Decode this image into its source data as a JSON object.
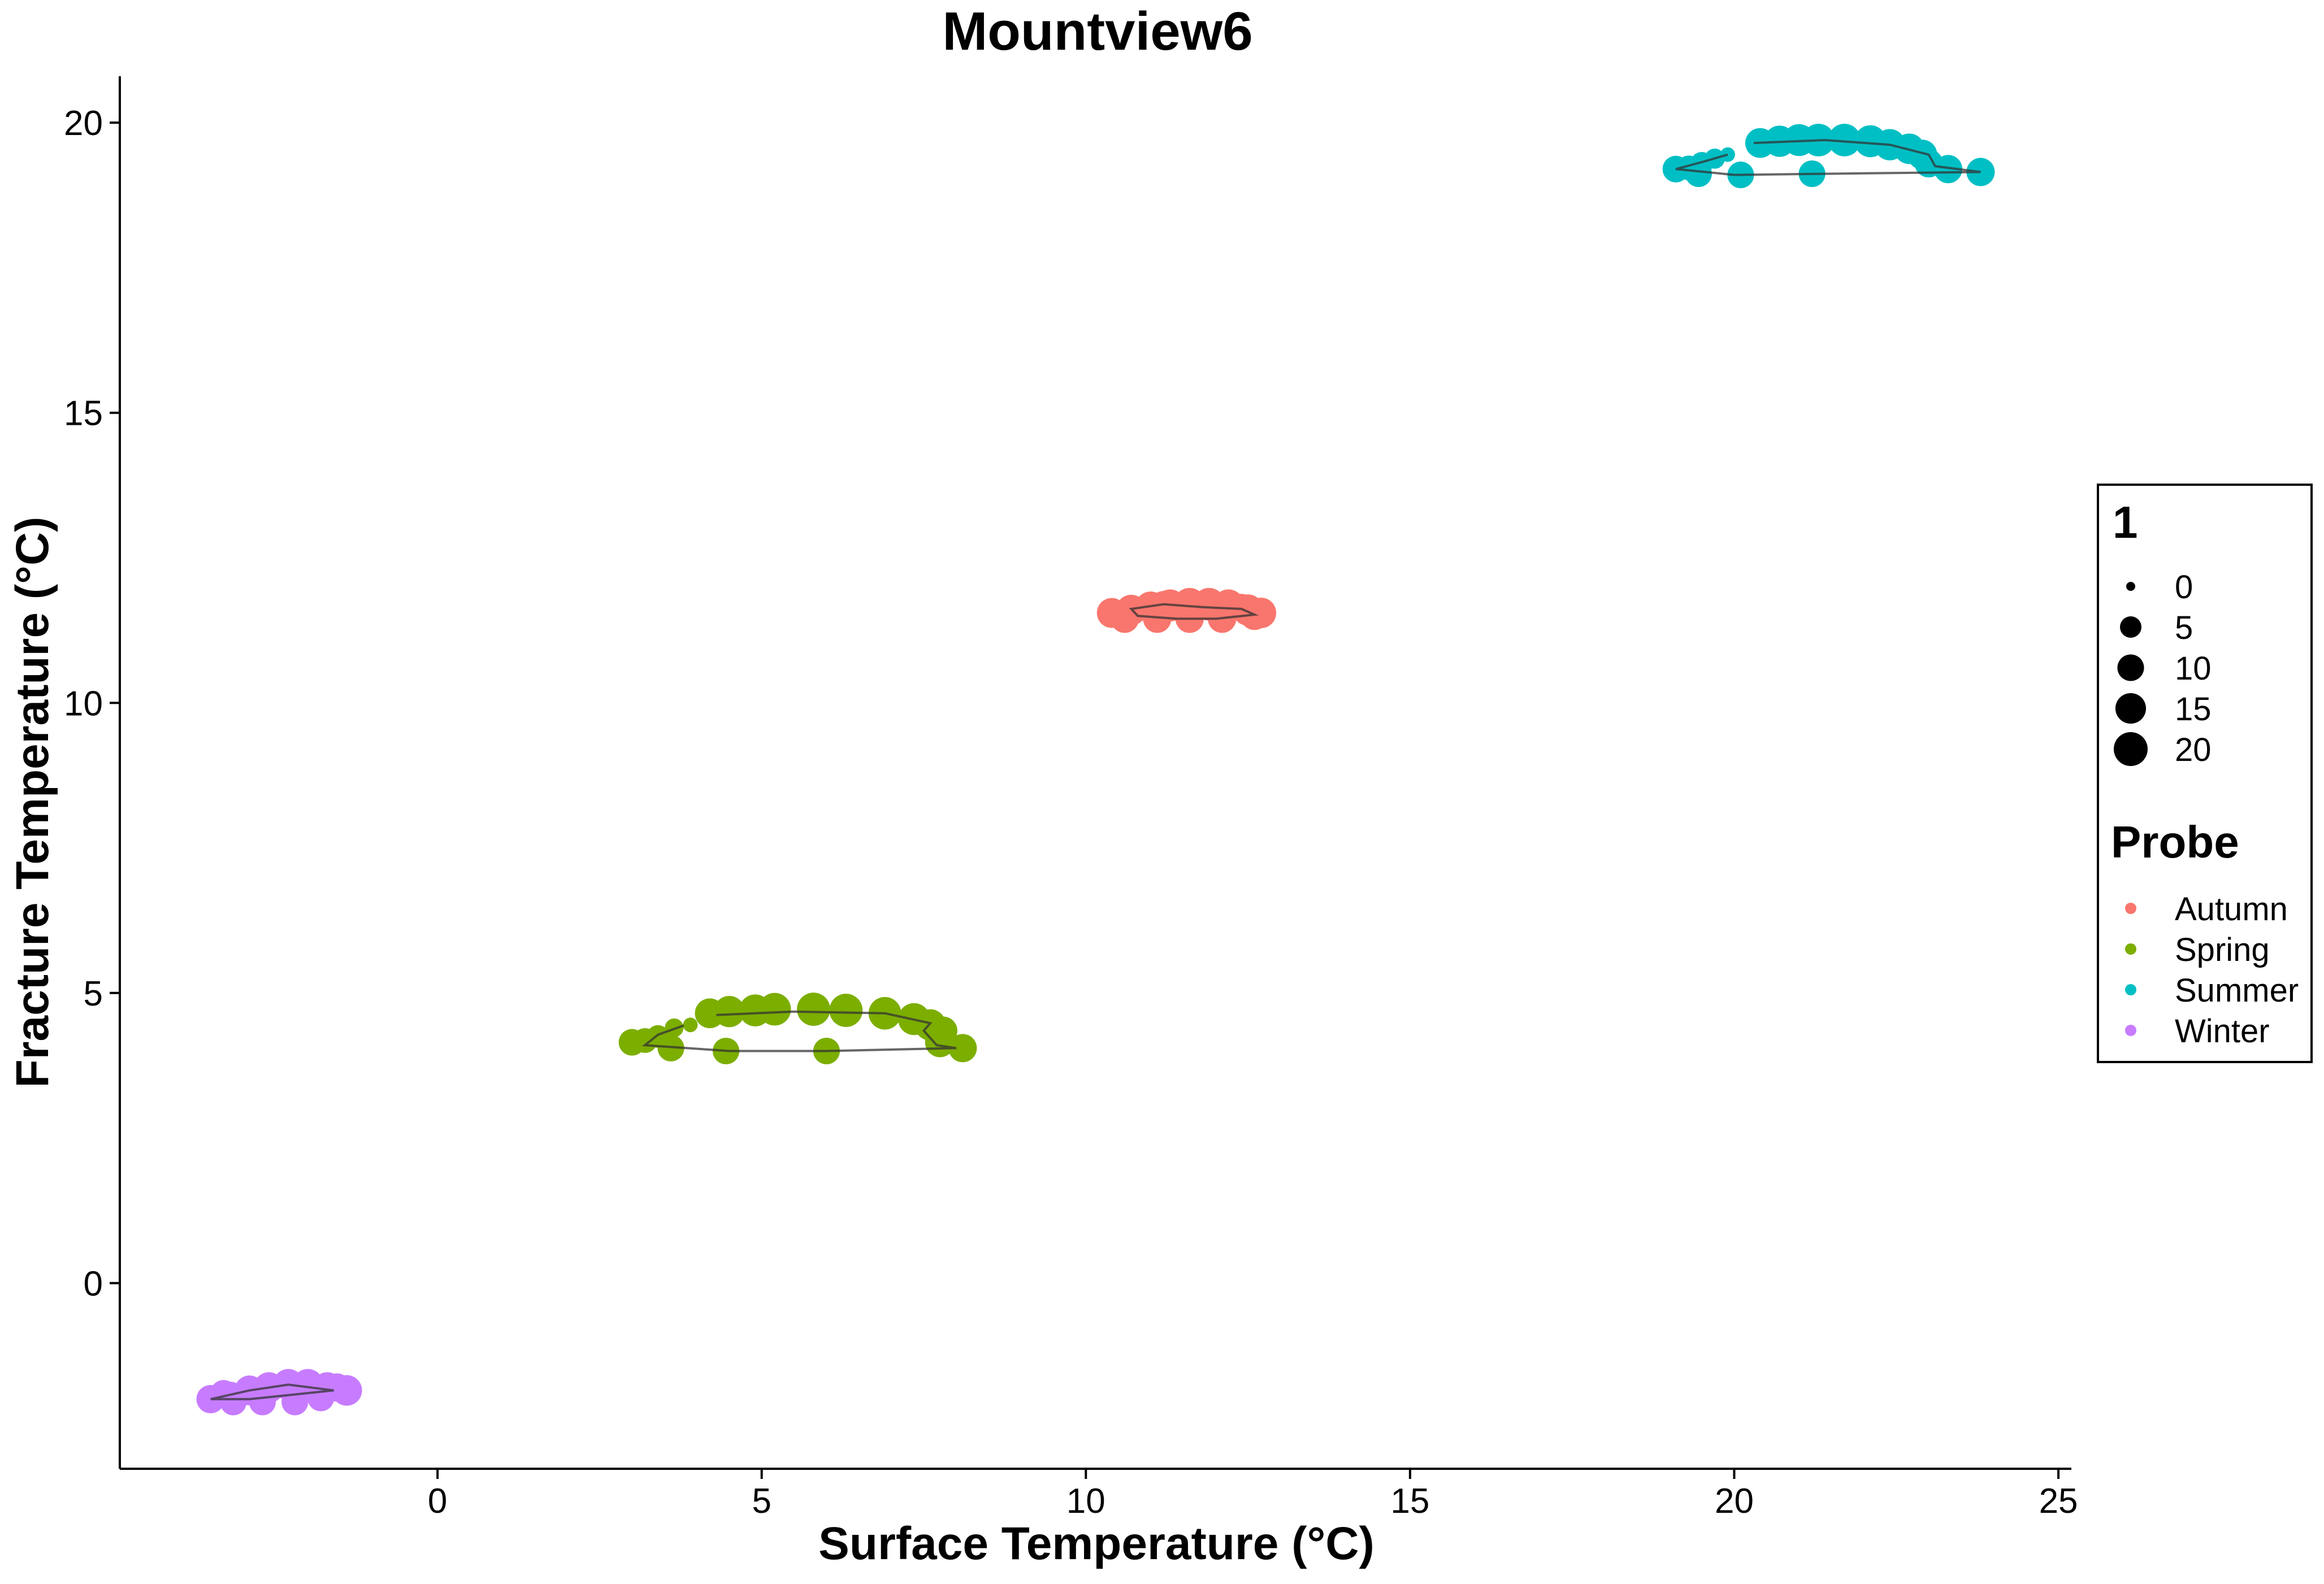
{
  "chart_data": {
    "type": "scatter",
    "title": "Mountview6",
    "xlabel": "Surface Temperature (°C)",
    "ylabel": "Fracture Temperature (°C)",
    "xlim": [
      -4.9,
      25.2
    ],
    "ylim": [
      -3.2,
      20.8
    ],
    "x_ticks": [
      0,
      5,
      10,
      15,
      20,
      25
    ],
    "x_tick_labels": [
      "0",
      "5",
      "10",
      "15",
      "20",
      "25"
    ],
    "y_ticks": [
      0,
      5,
      10,
      15,
      20
    ],
    "y_tick_labels": [
      "0",
      "5",
      "10",
      "15",
      "20"
    ],
    "grid": false,
    "legend_placement": "right",
    "size_legend": {
      "title": "1",
      "entries": [
        {
          "label": "0",
          "value": 0
        },
        {
          "label": "5",
          "value": 5
        },
        {
          "label": "10",
          "value": 10
        },
        {
          "label": "15",
          "value": 15
        },
        {
          "label": "20",
          "value": 20
        }
      ]
    },
    "color_legend": {
      "title": "Probe",
      "entries": [
        {
          "label": "Autumn",
          "color": "#F8766D"
        },
        {
          "label": "Spring",
          "color": "#7CAE00"
        },
        {
          "label": "Summer",
          "color": "#00BFC4"
        },
        {
          "label": "Winter",
          "color": "#C77CFF"
        }
      ]
    },
    "series": [
      {
        "name": "Autumn",
        "color": "#F8766D",
        "points": [
          [
            10.4,
            11.55,
            14
          ],
          [
            10.7,
            11.6,
            15
          ],
          [
            11.0,
            11.65,
            16
          ],
          [
            11.3,
            11.68,
            17
          ],
          [
            11.6,
            11.7,
            18
          ],
          [
            11.9,
            11.7,
            18
          ],
          [
            12.2,
            11.68,
            17
          ],
          [
            12.5,
            11.6,
            16
          ],
          [
            12.7,
            11.55,
            15
          ],
          [
            10.6,
            11.45,
            12
          ],
          [
            11.1,
            11.45,
            12
          ],
          [
            11.6,
            11.45,
            12
          ],
          [
            12.1,
            11.45,
            12
          ],
          [
            12.6,
            11.5,
            12
          ],
          [
            11.2,
            11.7,
            10
          ],
          [
            12.4,
            11.65,
            10
          ]
        ],
        "path": [
          [
            11.8,
            11.65
          ],
          [
            11.2,
            11.7
          ],
          [
            10.7,
            11.62
          ],
          [
            10.8,
            11.5
          ],
          [
            11.4,
            11.45
          ],
          [
            12.0,
            11.45
          ],
          [
            12.6,
            11.52
          ],
          [
            12.4,
            11.62
          ],
          [
            11.8,
            11.65
          ]
        ]
      },
      {
        "name": "Spring",
        "color": "#7CAE00",
        "points": [
          [
            3.0,
            4.15,
            10
          ],
          [
            3.2,
            4.18,
            8
          ],
          [
            3.4,
            4.25,
            6
          ],
          [
            3.65,
            4.4,
            3
          ],
          [
            3.9,
            4.45,
            1
          ],
          [
            4.2,
            4.65,
            14
          ],
          [
            4.5,
            4.68,
            16
          ],
          [
            4.9,
            4.7,
            17
          ],
          [
            5.2,
            4.72,
            18
          ],
          [
            5.8,
            4.72,
            19
          ],
          [
            6.3,
            4.7,
            19
          ],
          [
            6.9,
            4.65,
            18
          ],
          [
            7.35,
            4.55,
            17
          ],
          [
            7.6,
            4.45,
            16
          ],
          [
            7.8,
            4.35,
            12
          ],
          [
            7.75,
            4.15,
            14
          ],
          [
            8.1,
            4.05,
            12
          ],
          [
            6.0,
            4.0,
            10
          ],
          [
            4.45,
            4.0,
            10
          ],
          [
            3.6,
            4.05,
            10
          ]
        ],
        "path": [
          [
            4.3,
            4.62
          ],
          [
            5.5,
            4.68
          ],
          [
            6.9,
            4.65
          ],
          [
            7.6,
            4.48
          ],
          [
            7.5,
            4.35
          ],
          [
            7.7,
            4.1
          ],
          [
            8.0,
            4.05
          ],
          [
            6.0,
            4.0
          ],
          [
            4.5,
            4.0
          ],
          [
            3.2,
            4.1
          ],
          [
            3.4,
            4.28
          ],
          [
            3.8,
            4.44
          ]
        ]
      },
      {
        "name": "Summer",
        "color": "#00BFC4",
        "points": [
          [
            19.1,
            19.2,
            10
          ],
          [
            19.3,
            19.22,
            8
          ],
          [
            19.5,
            19.3,
            6
          ],
          [
            19.7,
            19.38,
            4
          ],
          [
            19.9,
            19.45,
            1
          ],
          [
            20.4,
            19.65,
            14
          ],
          [
            20.7,
            19.68,
            16
          ],
          [
            21.0,
            19.7,
            17
          ],
          [
            21.3,
            19.7,
            18
          ],
          [
            21.7,
            19.7,
            18
          ],
          [
            22.1,
            19.68,
            17
          ],
          [
            22.4,
            19.62,
            16
          ],
          [
            22.7,
            19.55,
            15
          ],
          [
            22.9,
            19.45,
            14
          ],
          [
            23.0,
            19.3,
            12
          ],
          [
            23.3,
            19.2,
            12
          ],
          [
            23.8,
            19.15,
            12
          ],
          [
            21.2,
            19.12,
            10
          ],
          [
            20.1,
            19.1,
            10
          ],
          [
            19.45,
            19.12,
            10
          ]
        ],
        "path": [
          [
            20.3,
            19.65
          ],
          [
            21.4,
            19.7
          ],
          [
            22.4,
            19.62
          ],
          [
            23.0,
            19.45
          ],
          [
            23.1,
            19.25
          ],
          [
            23.8,
            19.15
          ],
          [
            21.5,
            19.12
          ],
          [
            20.0,
            19.1
          ],
          [
            19.1,
            19.2
          ],
          [
            19.5,
            19.32
          ],
          [
            19.9,
            19.45
          ]
        ]
      },
      {
        "name": "Winter",
        "color": "#C77CFF",
        "points": [
          [
            -3.5,
            -2.0,
            12
          ],
          [
            -3.2,
            -1.95,
            13
          ],
          [
            -2.9,
            -1.85,
            14
          ],
          [
            -2.6,
            -1.8,
            15
          ],
          [
            -2.3,
            -1.75,
            16
          ],
          [
            -2.0,
            -1.75,
            16
          ],
          [
            -1.7,
            -1.8,
            15
          ],
          [
            -1.4,
            -1.85,
            15
          ],
          [
            -3.15,
            -2.05,
            10
          ],
          [
            -2.7,
            -2.05,
            10
          ],
          [
            -2.2,
            -2.05,
            10
          ],
          [
            -1.8,
            -1.98,
            10
          ],
          [
            -3.3,
            -1.9,
            10
          ],
          [
            -1.55,
            -1.8,
            12
          ]
        ],
        "path": [
          [
            -3.5,
            -2.0
          ],
          [
            -2.9,
            -1.85
          ],
          [
            -2.3,
            -1.75
          ],
          [
            -1.6,
            -1.85
          ],
          [
            -2.2,
            -1.92
          ],
          [
            -2.9,
            -2.0
          ],
          [
            -3.5,
            -2.0
          ]
        ]
      }
    ]
  }
}
